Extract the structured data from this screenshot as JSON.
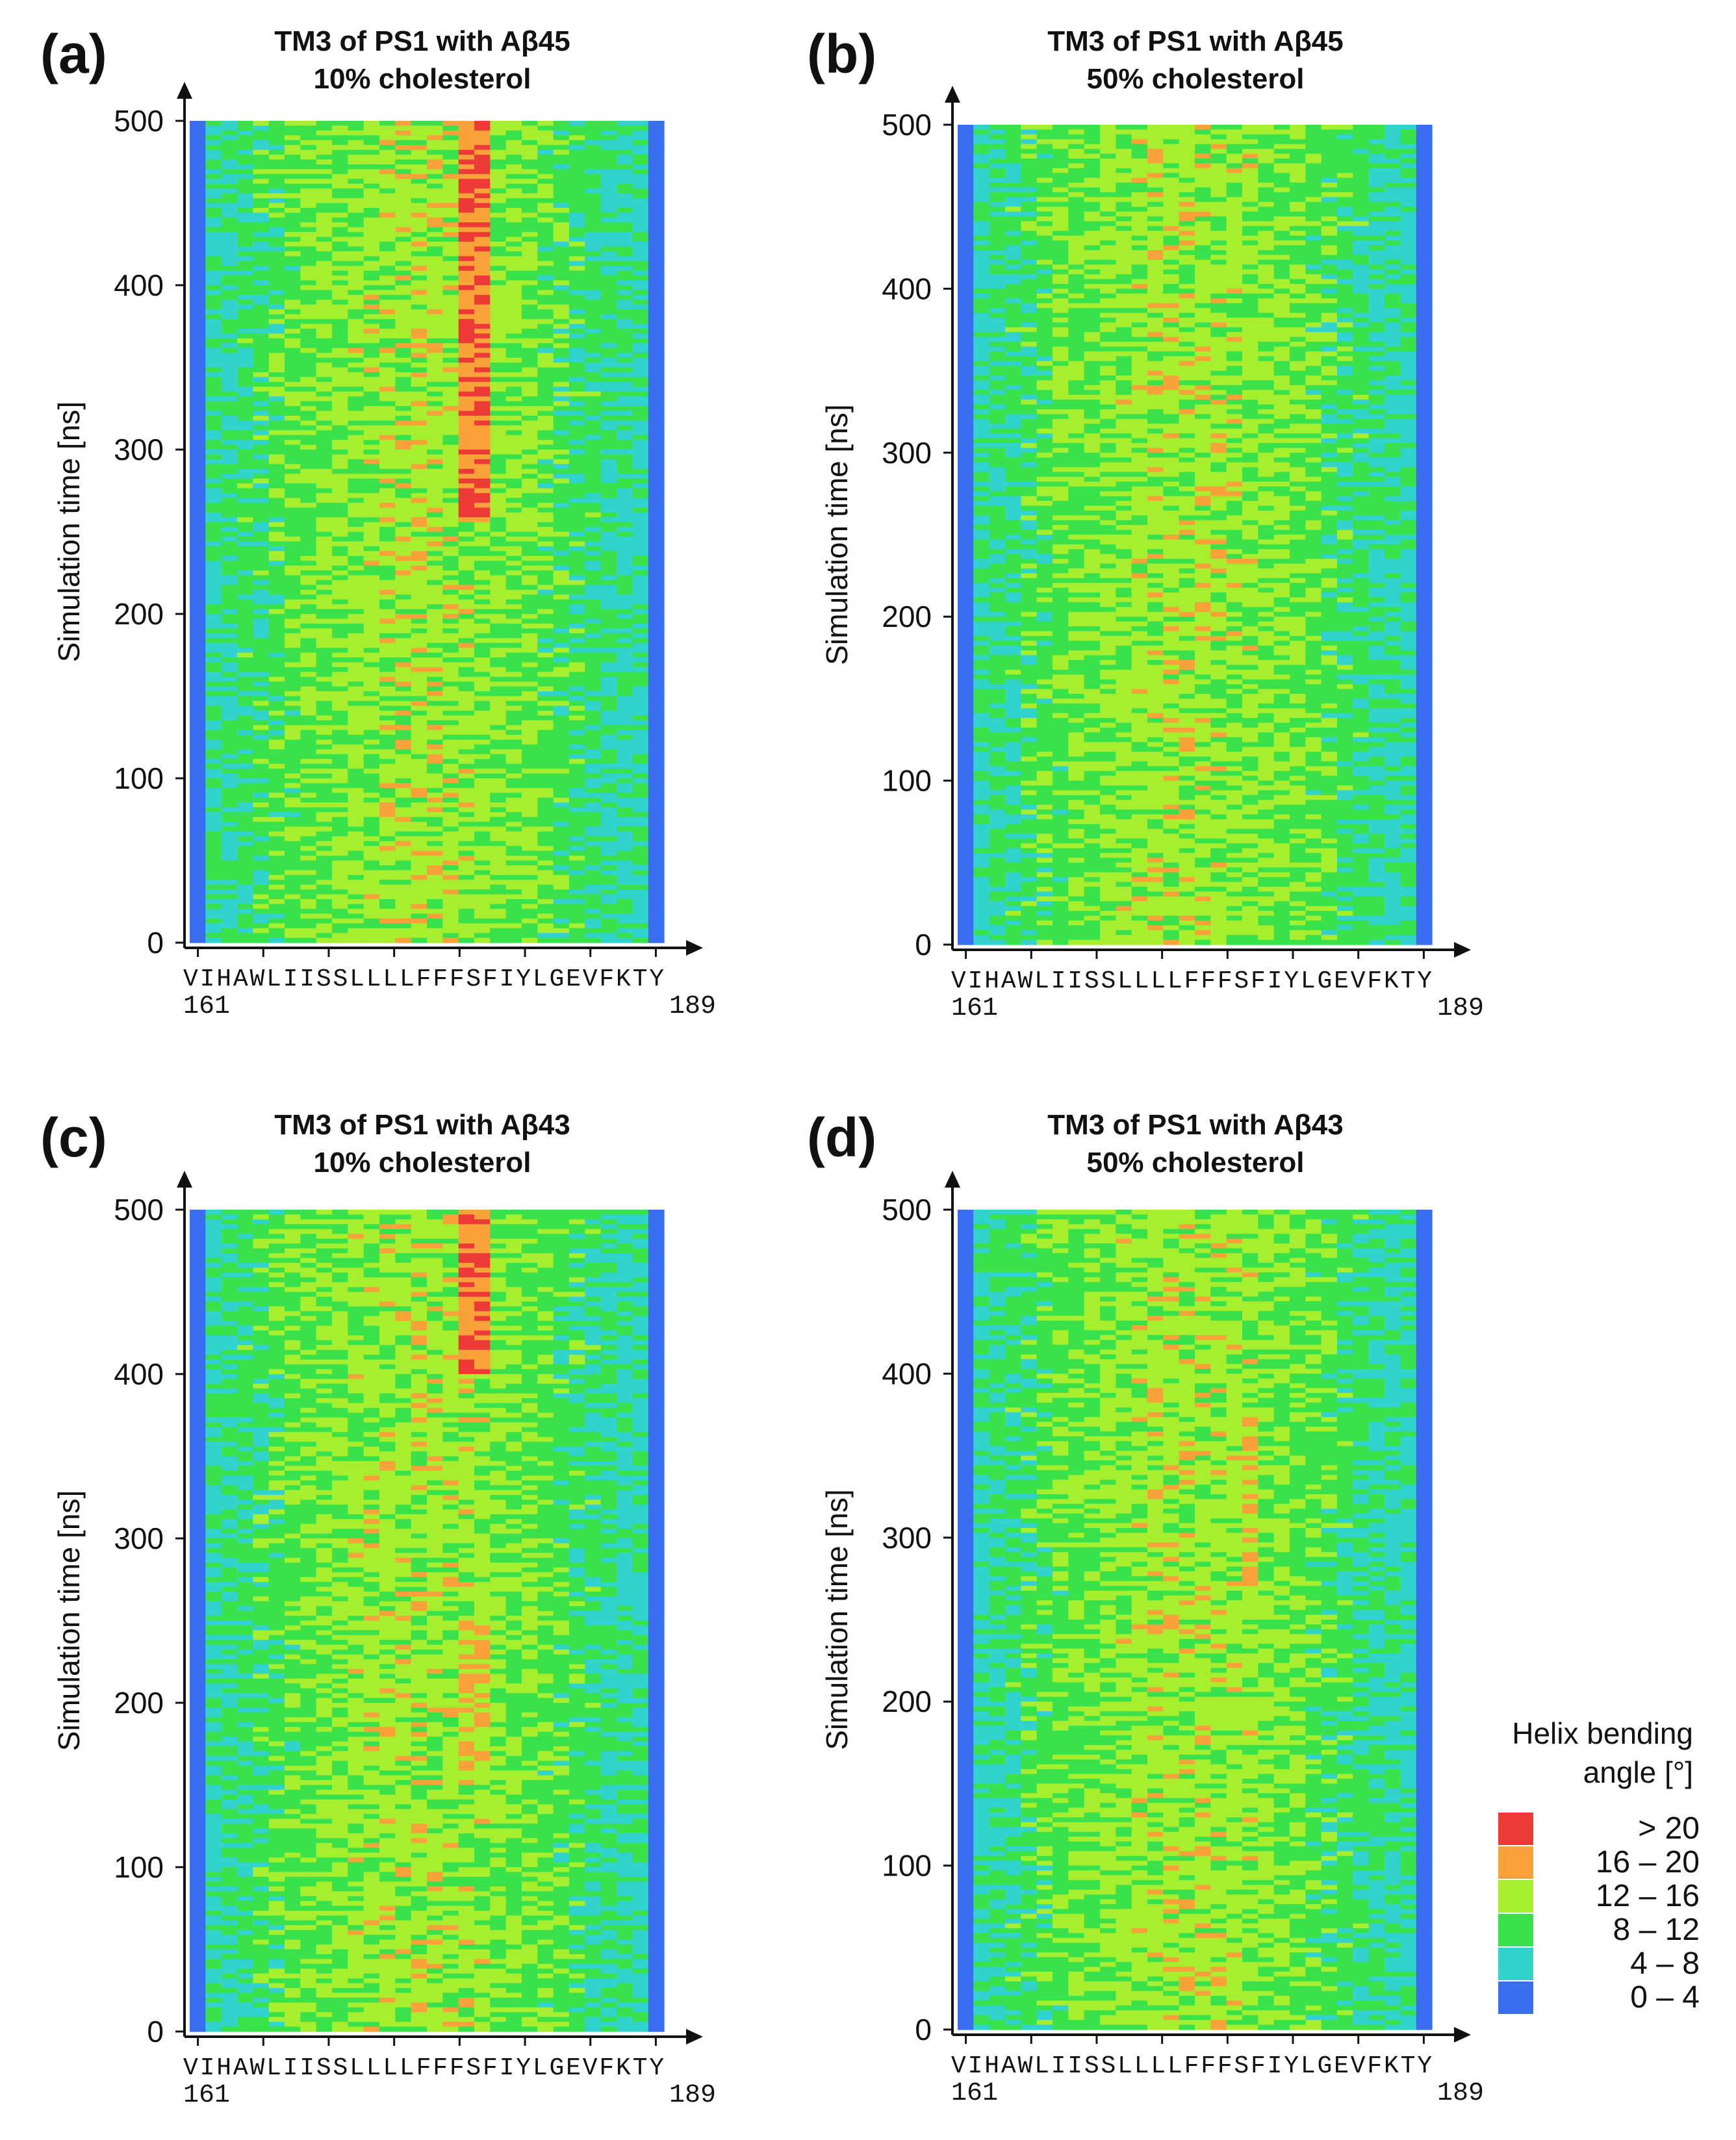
{
  "chart_data": [
    {
      "type": "heatmap",
      "panel": "(a)",
      "title_line1": "TM3 of PS1 with Aβ45",
      "title_line2": "10% cholesterol",
      "ylabel": "Simulation time [ns]",
      "yticks": [
        "0",
        "100",
        "200",
        "300",
        "400",
        "500"
      ],
      "ylim": [
        0,
        500
      ],
      "sequence": "VIHAWLIISSLLLLFFFSFIYLGEVFKTY",
      "residue_start": "161",
      "residue_end": "189",
      "hotspots": [
        {
          "residue_index": 18,
          "t_start": 255,
          "t_end": 500,
          "level": 5
        },
        {
          "residue_index": 17,
          "t_start": 255,
          "t_end": 500,
          "level": 5
        },
        {
          "residue_index": 21,
          "t_start": 260,
          "t_end": 430,
          "level": 3
        },
        {
          "residue_index": 14,
          "t_start": 200,
          "t_end": 260,
          "level": 3
        }
      ]
    },
    {
      "type": "heatmap",
      "panel": "(b)",
      "title_line1": "TM3 of PS1 with Aβ45",
      "title_line2": "50% cholesterol",
      "ylabel": "Simulation time [ns]",
      "yticks": [
        "0",
        "100",
        "200",
        "300",
        "400",
        "500"
      ],
      "ylim": [
        0,
        500
      ],
      "sequence": "VIHAWLIISSLLLLFFFSFIYLGEVFKTY",
      "residue_start": "161",
      "residue_end": "189",
      "hotspots": [
        {
          "residue_index": 6,
          "t_start": 270,
          "t_end": 410,
          "level": 3
        },
        {
          "residue_index": 15,
          "t_start": 80,
          "t_end": 260,
          "level": 3
        }
      ]
    },
    {
      "type": "heatmap",
      "panel": "(c)",
      "title_line1": "TM3 of PS1 with Aβ43",
      "title_line2": "10% cholesterol",
      "ylabel": "Simulation time [ns]",
      "yticks": [
        "0",
        "100",
        "200",
        "300",
        "400",
        "500"
      ],
      "ylim": [
        0,
        500
      ],
      "sequence": "VIHAWLIISSLLLLFFFSFIYLGEVFKTY",
      "residue_start": "161",
      "residue_end": "189",
      "hotspots": [
        {
          "residue_index": 18,
          "t_start": 400,
          "t_end": 500,
          "level": 5
        },
        {
          "residue_index": 17,
          "t_start": 400,
          "t_end": 500,
          "level": 5
        },
        {
          "residue_index": 18,
          "t_start": 150,
          "t_end": 250,
          "level": 4
        },
        {
          "residue_index": 17,
          "t_start": 150,
          "t_end": 250,
          "level": 4
        },
        {
          "residue_index": 13,
          "t_start": 440,
          "t_end": 500,
          "level": 3
        },
        {
          "residue_index": 5,
          "t_start": 420,
          "t_end": 470,
          "level": 3
        }
      ]
    },
    {
      "type": "heatmap",
      "panel": "(d)",
      "title_line1": "TM3 of PS1 with Aβ43",
      "title_line2": "50% cholesterol",
      "ylabel": "Simulation time [ns]",
      "yticks": [
        "0",
        "100",
        "200",
        "300",
        "400",
        "500"
      ],
      "ylim": [
        0,
        500
      ],
      "sequence": "VIHAWLIISSLLLLFFFSFIYLGEVFKTY",
      "residue_start": "161",
      "residue_end": "189",
      "hotspots": [
        {
          "residue_index": 18,
          "t_start": 260,
          "t_end": 380,
          "level": 4
        },
        {
          "residue_index": 18,
          "t_start": 180,
          "t_end": 200,
          "level": 4
        },
        {
          "residue_index": 17,
          "t_start": 0,
          "t_end": 500,
          "level": 3
        }
      ]
    }
  ],
  "legend": {
    "title_line1": "Helix bending",
    "title_line2": "angle [°]",
    "entries": [
      {
        "label": "> 20",
        "color": "#ee3a36"
      },
      {
        "label": "16 – 20",
        "color": "#f9a23a"
      },
      {
        "label": "12 – 16",
        "color": "#a6ee2e"
      },
      {
        "label": "8 – 12",
        "color": "#39e24a"
      },
      {
        "label": "4 – 8",
        "color": "#32d3cc"
      },
      {
        "label": "0 – 4",
        "color": "#3a6ef0"
      }
    ]
  }
}
